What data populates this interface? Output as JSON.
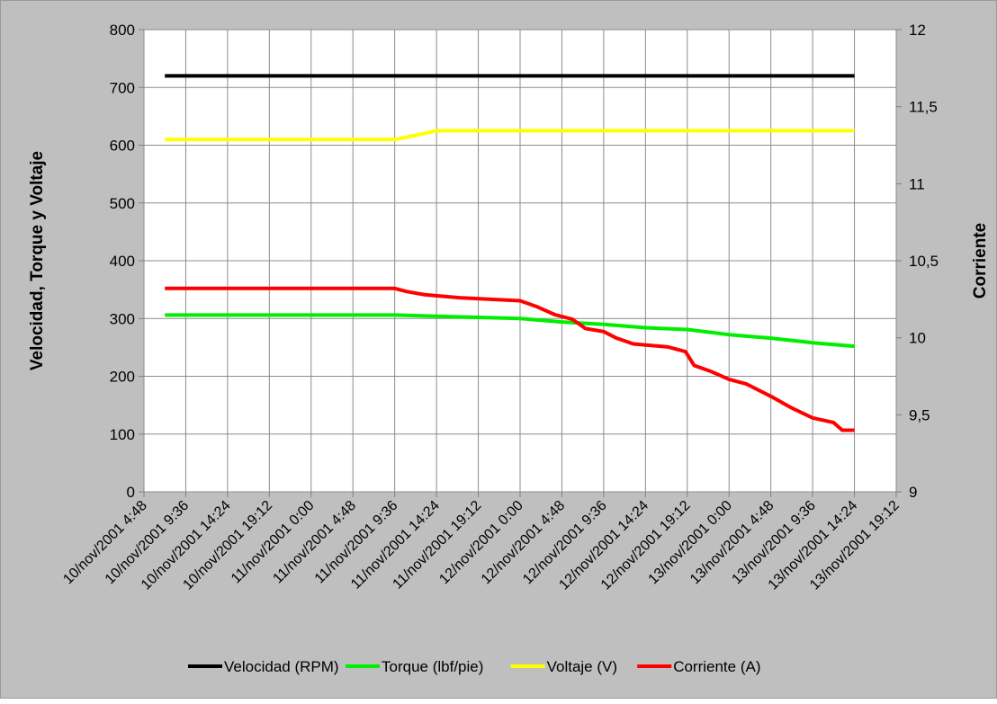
{
  "chart_data": {
    "type": "line",
    "title": "",
    "x_axis": {
      "type": "datetime",
      "tick_labels": [
        "10/nov/2001 4:48",
        "10/nov/2001 9:36",
        "10/nov/2001 14:24",
        "10/nov/2001 19:12",
        "11/nov/2001 0:00",
        "11/nov/2001 4:48",
        "11/nov/2001 9:36",
        "11/nov/2001 14:24",
        "11/nov/2001 19:12",
        "12/nov/2001 0:00",
        "12/nov/2001 4:48",
        "12/nov/2001 9:36",
        "12/nov/2001 14:24",
        "12/nov/2001 19:12",
        "13/nov/2001 0:00",
        "13/nov/2001 4:48",
        "13/nov/2001 9:36",
        "13/nov/2001 14:24",
        "13/nov/2001 19:12"
      ],
      "range": [
        "10/nov/2001 4:48",
        "13/nov/2001 19:12"
      ]
    },
    "y_left": {
      "label": "Velocidad,  Torque  y  Voltaje",
      "ylim": [
        0,
        800
      ],
      "ticks": [
        0,
        100,
        200,
        300,
        400,
        500,
        600,
        700,
        800
      ]
    },
    "y_right": {
      "label": "Corriente",
      "ylim": [
        9,
        12
      ],
      "ticks": [
        "9",
        "9,5",
        "10",
        "10,5",
        "11",
        "11,5",
        "12"
      ]
    },
    "grid": true,
    "legend_position": "bottom",
    "series": [
      {
        "name": "Velocidad (RPM)",
        "color": "#000000",
        "axis": "left",
        "points": [
          [
            "10/nov/2001 7:12",
            720
          ],
          [
            "13/nov/2001 14:24",
            720
          ]
        ]
      },
      {
        "name": "Torque (lbf/pie)",
        "color": "#00ee00",
        "axis": "left",
        "points": [
          [
            "10/nov/2001 7:12",
            306
          ],
          [
            "11/nov/2001 9:36",
            306
          ],
          [
            "11/nov/2001 14:24",
            304
          ],
          [
            "11/nov/2001 19:12",
            302
          ],
          [
            "12/nov/2001 0:00",
            300
          ],
          [
            "12/nov/2001 4:48",
            294
          ],
          [
            "12/nov/2001 9:36",
            290
          ],
          [
            "12/nov/2001 14:24",
            284
          ],
          [
            "12/nov/2001 19:12",
            281
          ],
          [
            "13/nov/2001 0:00",
            272
          ],
          [
            "13/nov/2001 4:48",
            266
          ],
          [
            "13/nov/2001 9:36",
            258
          ],
          [
            "13/nov/2001 14:24",
            252
          ]
        ]
      },
      {
        "name": "Voltaje (V)",
        "color": "#ffff00",
        "axis": "left",
        "points": [
          [
            "10/nov/2001 7:12",
            610
          ],
          [
            "11/nov/2001 9:36",
            610
          ],
          [
            "11/nov/2001 12:00",
            617
          ],
          [
            "11/nov/2001 14:24",
            625
          ],
          [
            "13/nov/2001 14:24",
            625
          ]
        ]
      },
      {
        "name": "Corriente (A)",
        "color": "#ff0000",
        "axis": "right",
        "points": [
          [
            "10/nov/2001 7:12",
            10.32
          ],
          [
            "11/nov/2001 9:36",
            10.32
          ],
          [
            "11/nov/2001 11:00",
            10.3
          ],
          [
            "11/nov/2001 13:00",
            10.28
          ],
          [
            "11/nov/2001 17:00",
            10.26
          ],
          [
            "12/nov/2001 0:00",
            10.24
          ],
          [
            "12/nov/2001 2:00",
            10.2
          ],
          [
            "12/nov/2001 4:00",
            10.15
          ],
          [
            "12/nov/2001 6:00",
            10.12
          ],
          [
            "12/nov/2001 7:30",
            10.06
          ],
          [
            "12/nov/2001 9:36",
            10.04
          ],
          [
            "12/nov/2001 11:00",
            10.0
          ],
          [
            "12/nov/2001 13:00",
            9.96
          ],
          [
            "12/nov/2001 17:00",
            9.94
          ],
          [
            "12/nov/2001 19:00",
            9.91
          ],
          [
            "12/nov/2001 20:00",
            9.82
          ],
          [
            "12/nov/2001 22:00",
            9.78
          ],
          [
            "13/nov/2001 0:00",
            9.73
          ],
          [
            "13/nov/2001 2:00",
            9.7
          ],
          [
            "13/nov/2001 4:48",
            9.62
          ],
          [
            "13/nov/2001 7:00",
            9.55
          ],
          [
            "13/nov/2001 9:36",
            9.48
          ],
          [
            "13/nov/2001 12:00",
            9.45
          ],
          [
            "13/nov/2001 13:00",
            9.4
          ],
          [
            "13/nov/2001 14:24",
            9.4
          ]
        ]
      }
    ]
  }
}
